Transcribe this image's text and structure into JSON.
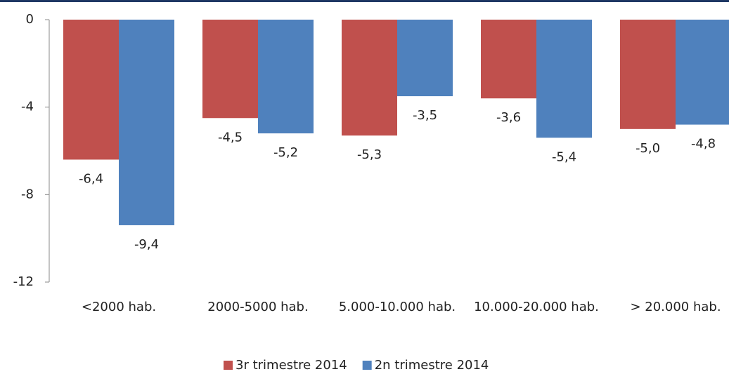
{
  "chart_data": {
    "type": "bar",
    "categories": [
      "<2000 hab.",
      "2000-5000 hab.",
      "5.000-10.000 hab.",
      "10.000-20.000 hab.",
      "> 20.000 hab."
    ],
    "series": [
      {
        "name": "3r trimestre 2014",
        "color": "#c0504d",
        "values": [
          -6.4,
          -4.5,
          -5.3,
          -3.6,
          -5.0
        ],
        "value_labels": [
          "-6,4",
          "-4,5",
          "-5,3",
          "-3,6",
          "-5,0"
        ]
      },
      {
        "name": "2n trimestre 2014",
        "color": "#4f81bd",
        "values": [
          -9.4,
          -5.2,
          -3.5,
          -5.4,
          -4.8
        ],
        "value_labels": [
          "-9,4",
          "-5,2",
          "-3,5",
          "-5,4",
          "-4,8"
        ]
      }
    ],
    "ylim": [
      -12,
      0
    ],
    "yticks": [
      0,
      -4,
      -8,
      -12
    ],
    "grid": false,
    "legend": "bottom"
  }
}
